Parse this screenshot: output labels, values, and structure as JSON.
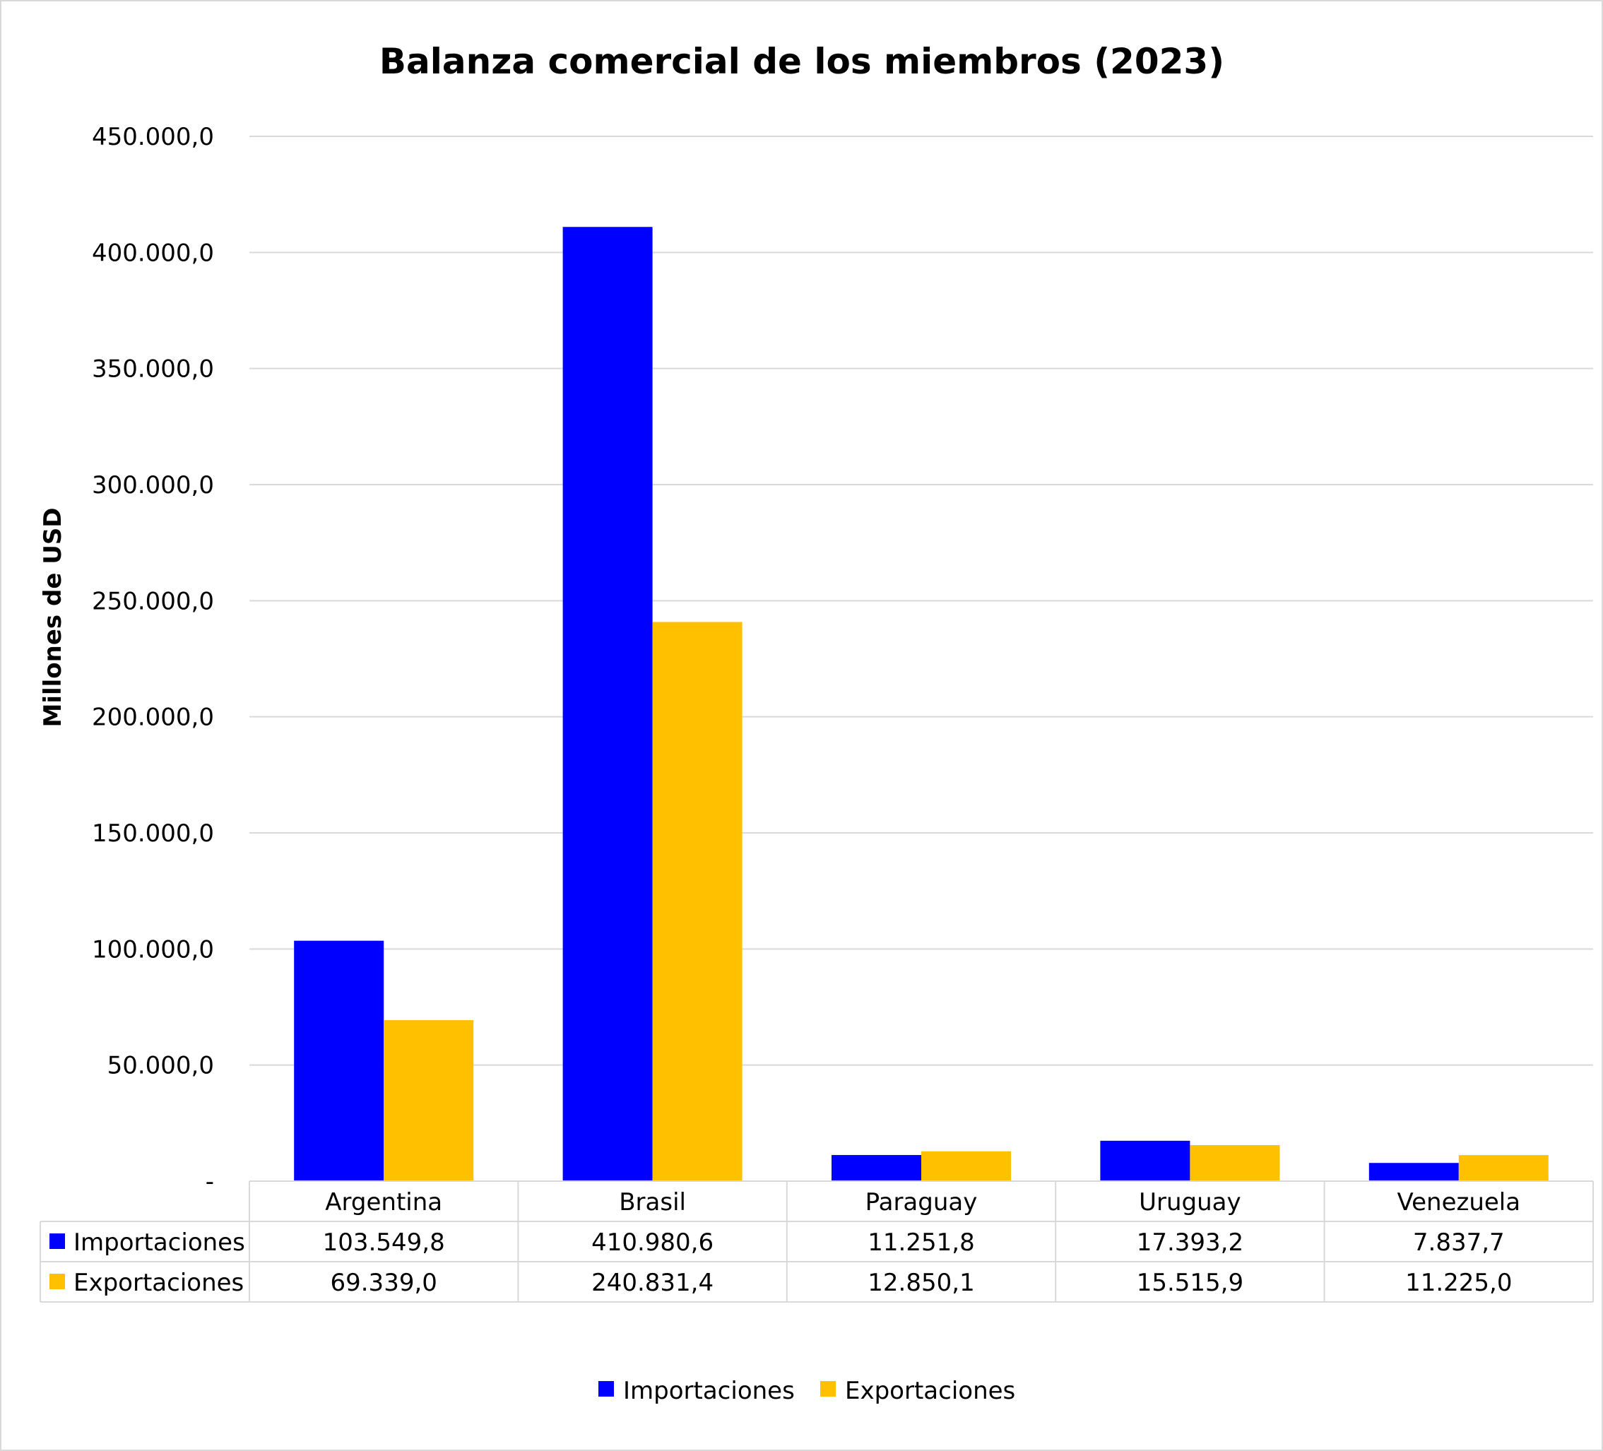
{
  "chart_data": {
    "type": "bar",
    "title": "Balanza comercial de los miembros (2023)",
    "xlabel": "",
    "ylabel": "Millones de USD",
    "ylim": [
      0,
      450000
    ],
    "yticks": [
      0,
      50000,
      100000,
      150000,
      200000,
      250000,
      300000,
      350000,
      400000,
      450000
    ],
    "ytick_labels": [
      "-",
      "50.000,0",
      "100.000,0",
      "150.000,0",
      "200.000,0",
      "250.000,0",
      "300.000,0",
      "350.000,0",
      "400.000,0",
      "450.000,0"
    ],
    "grid": true,
    "legend_position": "bottom",
    "categories": [
      "Argentina",
      "Brasil",
      "Paraguay",
      "Uruguay",
      "Venezuela"
    ],
    "series": [
      {
        "name": "Importaciones",
        "color": "#0000FF",
        "values": [
          103549.8,
          410980.6,
          11251.8,
          17393.2,
          7837.7
        ],
        "labels": [
          "103.549,8",
          "410.980,6",
          "11.251,8",
          "17.393,2",
          "7.837,7"
        ]
      },
      {
        "name": "Exportaciones",
        "color": "#FFC000",
        "values": [
          69339.0,
          240831.4,
          12850.1,
          15515.9,
          11225.0
        ],
        "labels": [
          "69.339,0",
          "240.831,4",
          "12.850,1",
          "15.515,9",
          "11.225,0"
        ]
      }
    ],
    "data_table": true
  }
}
